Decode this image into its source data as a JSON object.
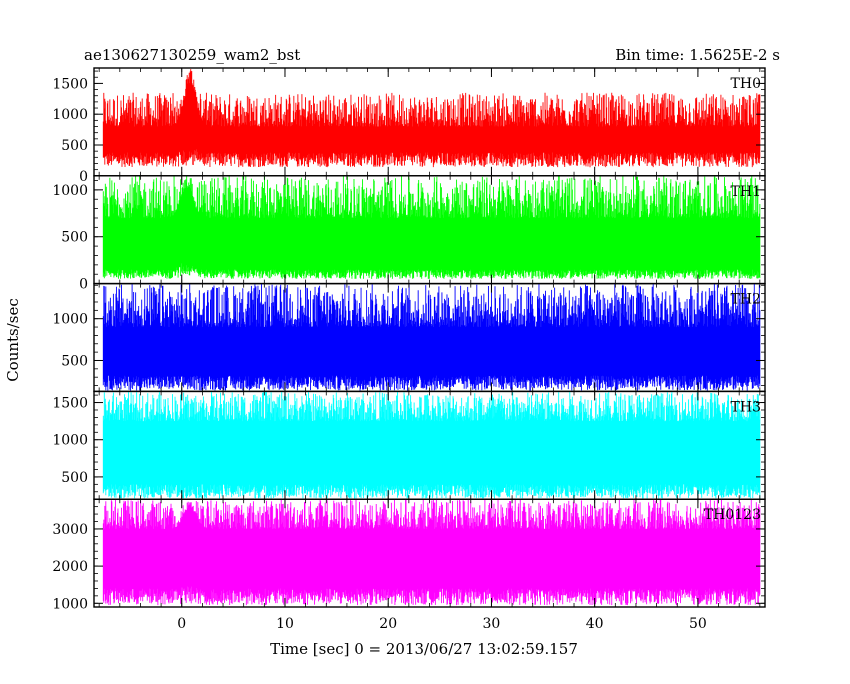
{
  "header": {
    "title": "ae130627130259_wam2_bst",
    "bin_time": "Bin time: 1.5625E-2 s"
  },
  "axes": {
    "ylabel": "Counts/sec",
    "xlabel": "Time [sec] 0 = 2013/06/27 13:02:59.157",
    "xlim": [
      -8.5,
      56.5
    ],
    "xticks": [
      0,
      10,
      20,
      30,
      40,
      50
    ],
    "xtick_labels": [
      "0",
      "10",
      "20",
      "30",
      "40",
      "50"
    ]
  },
  "chart_data": [
    {
      "type": "line",
      "label": "TH0",
      "color": "#ff0000",
      "ylim": [
        0,
        1750
      ],
      "yticks": [
        0,
        500,
        1000,
        1500
      ],
      "ytick_labels": [
        "0",
        "500",
        "1000",
        "1500"
      ],
      "x_range": [
        -7.6,
        56
      ],
      "baseline_low": [
        140,
        380
      ],
      "baseline_high": [
        800,
        1350
      ],
      "peak": {
        "x": 0.8,
        "value": 1750
      }
    },
    {
      "type": "line",
      "label": "TH1",
      "color": "#00ff00",
      "ylim": [
        0,
        1150
      ],
      "yticks": [
        0,
        500,
        1000
      ],
      "ytick_labels": [
        "0",
        "500",
        "1000"
      ],
      "x_range": [
        -7.6,
        56
      ],
      "baseline_low": [
        50,
        150
      ],
      "baseline_high": [
        700,
        1150
      ],
      "peak": {
        "x": 0.5,
        "value": 1150
      }
    },
    {
      "type": "line",
      "label": "TH2",
      "color": "#0000ff",
      "ylim": [
        130,
        1420
      ],
      "yticks": [
        500,
        1000
      ],
      "ytick_labels": [
        "500",
        "1000"
      ],
      "x_range": [
        -7.6,
        56
      ],
      "baseline_low": [
        140,
        320
      ],
      "baseline_high": [
        900,
        1420
      ],
      "peak": null
    },
    {
      "type": "line",
      "label": "TH3",
      "color": "#00ffff",
      "ylim": [
        200,
        1650
      ],
      "yticks": [
        500,
        1000,
        1500
      ],
      "ytick_labels": [
        "500",
        "1000",
        "1500"
      ],
      "x_range": [
        -7.6,
        56
      ],
      "baseline_low": [
        210,
        400
      ],
      "baseline_high": [
        1250,
        1650
      ],
      "peak": null
    },
    {
      "type": "line",
      "label": "TH0123",
      "color": "#ff00ff",
      "ylim": [
        900,
        3800
      ],
      "yticks": [
        1000,
        2000,
        3000
      ],
      "ytick_labels": [
        "1000",
        "2000",
        "3000"
      ],
      "x_range": [
        -7.6,
        56
      ],
      "baseline_low": [
        950,
        1400
      ],
      "baseline_high": [
        3000,
        3800
      ],
      "peak": {
        "x": 0.8,
        "value": 3800
      }
    }
  ]
}
